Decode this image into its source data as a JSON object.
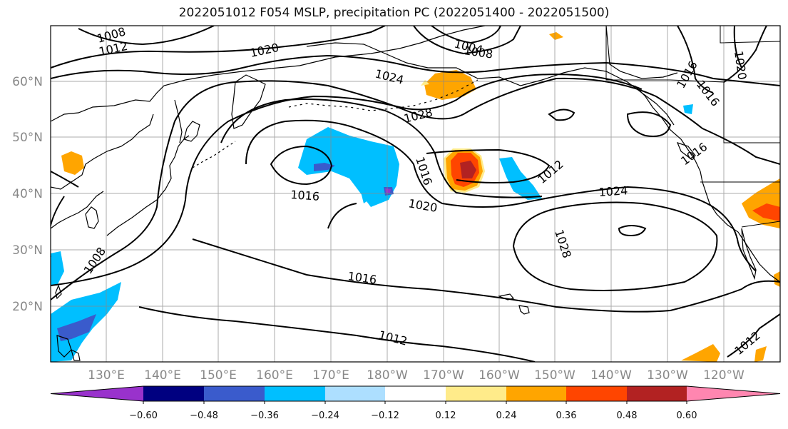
{
  "title": "2022051012 F054 MSLP, precipitation PC (2022051400 - 2022051500)",
  "lat_labels": [
    "60°N",
    "50°N",
    "40°N",
    "30°N",
    "20°N"
  ],
  "lon_labels": [
    "130°E",
    "140°E",
    "150°E",
    "160°E",
    "170°E",
    "180°W",
    "170°W",
    "160°W",
    "150°W",
    "140°W",
    "130°W",
    "120°W"
  ],
  "contour_labels": [
    "1008",
    "1012",
    "1020",
    "1004",
    "1008",
    "1024",
    "1028",
    "1016",
    "1016",
    "1016",
    "1012",
    "1020",
    "1024",
    "1028",
    "1016",
    "1012",
    "1012",
    "1008",
    "1016",
    "1016",
    "1020"
  ],
  "colorbar": {
    "colors": [
      "#9932CC",
      "#000080",
      "#3A5BCC",
      "#00BFFF",
      "#ADDFFF",
      "#FFFFFF",
      "#FFEB8A",
      "#FFA500",
      "#FF4500",
      "#B22222",
      "#FF86B0"
    ],
    "tick_labels": [
      "−0.60",
      "−0.48",
      "−0.36",
      "−0.24",
      "−0.12",
      "0.12",
      "0.24",
      "0.36",
      "0.48",
      "0.60"
    ]
  }
}
